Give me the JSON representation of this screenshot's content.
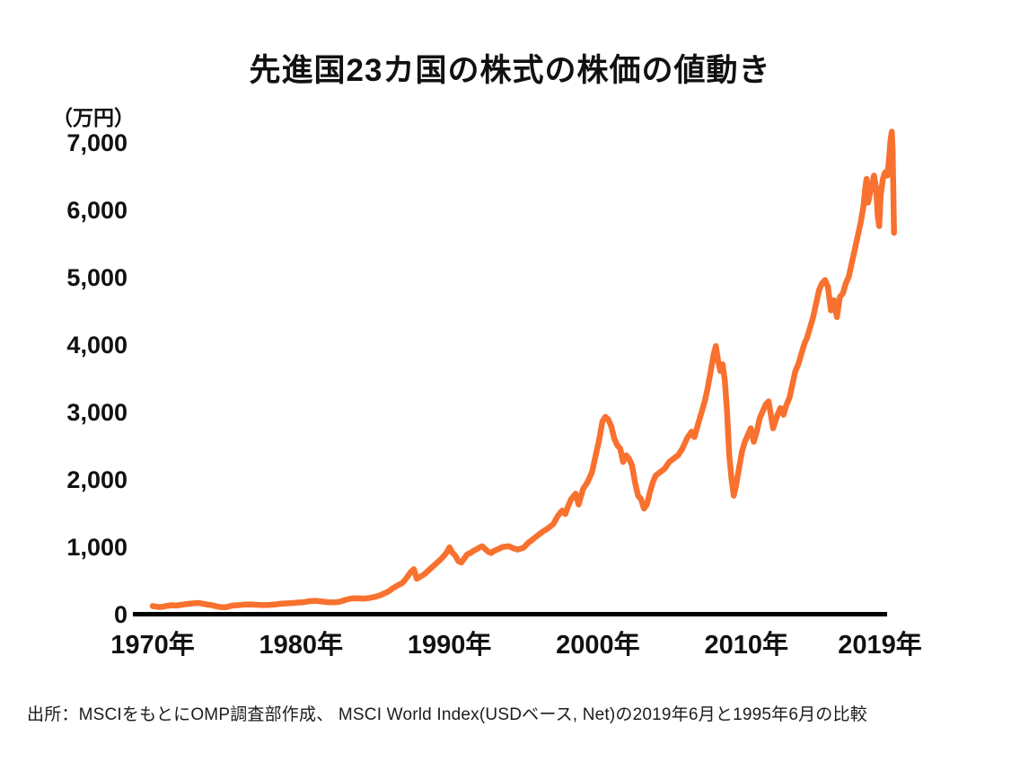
{
  "title": "先進国23カ国の株式の株価の値動き",
  "source_note": "出所：MSCIをもとにOMP調査部作成、 MSCI World Index(USDベース, Net)の2019年6月と1995年6月の比較",
  "chart_data": {
    "type": "line",
    "title": "先進国23カ国の株式の株価の値動き",
    "unit_label": "（万円）",
    "ylabel": "万円",
    "xlabel": "年",
    "ylim": [
      0,
      7000
    ],
    "grid": false,
    "legend": "none",
    "line_color": "#F8712F",
    "axis_color": "#000000",
    "text_color": "#111111",
    "y_ticks": [
      0,
      1000,
      2000,
      3000,
      4000,
      5000,
      6000,
      7000
    ],
    "y_tick_labels": [
      "0",
      "1,000",
      "2,000",
      "3,000",
      "4,000",
      "5,000",
      "6,000",
      "7,000"
    ],
    "x_ticks": [
      1970,
      1980,
      1990,
      2000,
      2010,
      2019
    ],
    "x_tick_labels": [
      "1970年",
      "1980年",
      "1990年",
      "2000年",
      "2010年",
      "2019年"
    ],
    "series": [
      {
        "name": "MSCI World Index (USDベース, Net)",
        "points": [
          [
            1970.0,
            115
          ],
          [
            1970.25,
            104
          ],
          [
            1970.5,
            98
          ],
          [
            1970.75,
            108
          ],
          [
            1971.0,
            118
          ],
          [
            1971.3,
            126
          ],
          [
            1971.6,
            121
          ],
          [
            1972.0,
            135
          ],
          [
            1972.4,
            146
          ],
          [
            1972.8,
            156
          ],
          [
            1973.1,
            160
          ],
          [
            1973.4,
            148
          ],
          [
            1973.7,
            136
          ],
          [
            1974.0,
            126
          ],
          [
            1974.3,
            110
          ],
          [
            1974.6,
            99
          ],
          [
            1974.9,
            96
          ],
          [
            1975.2,
            114
          ],
          [
            1975.5,
            124
          ],
          [
            1975.8,
            128
          ],
          [
            1976.2,
            136
          ],
          [
            1976.6,
            139
          ],
          [
            1977.0,
            133
          ],
          [
            1977.4,
            128
          ],
          [
            1977.8,
            131
          ],
          [
            1978.2,
            136
          ],
          [
            1978.6,
            148
          ],
          [
            1979.0,
            153
          ],
          [
            1979.4,
            159
          ],
          [
            1979.8,
            166
          ],
          [
            1980.2,
            172
          ],
          [
            1980.6,
            186
          ],
          [
            1981.0,
            192
          ],
          [
            1981.4,
            181
          ],
          [
            1981.8,
            172
          ],
          [
            1982.2,
            168
          ],
          [
            1982.6,
            177
          ],
          [
            1983.0,
            206
          ],
          [
            1983.4,
            226
          ],
          [
            1983.8,
            231
          ],
          [
            1984.2,
            224
          ],
          [
            1984.6,
            233
          ],
          [
            1985.0,
            252
          ],
          [
            1985.3,
            272
          ],
          [
            1985.6,
            302
          ],
          [
            1985.9,
            332
          ],
          [
            1986.2,
            382
          ],
          [
            1986.5,
            420
          ],
          [
            1986.8,
            452
          ],
          [
            1987.0,
            500
          ],
          [
            1987.2,
            560
          ],
          [
            1987.4,
            622
          ],
          [
            1987.6,
            662
          ],
          [
            1987.8,
            520
          ],
          [
            1988.0,
            545
          ],
          [
            1988.3,
            585
          ],
          [
            1988.6,
            645
          ],
          [
            1988.9,
            705
          ],
          [
            1989.2,
            765
          ],
          [
            1989.5,
            825
          ],
          [
            1989.8,
            905
          ],
          [
            1990.0,
            985
          ],
          [
            1990.2,
            905
          ],
          [
            1990.4,
            862
          ],
          [
            1990.6,
            782
          ],
          [
            1990.8,
            762
          ],
          [
            1991.0,
            822
          ],
          [
            1991.2,
            882
          ],
          [
            1991.4,
            902
          ],
          [
            1991.6,
            932
          ],
          [
            1991.8,
            952
          ],
          [
            1992.0,
            982
          ],
          [
            1992.2,
            1002
          ],
          [
            1992.4,
            962
          ],
          [
            1992.6,
            922
          ],
          [
            1992.8,
            902
          ],
          [
            1993.0,
            932
          ],
          [
            1993.3,
            962
          ],
          [
            1993.6,
            992
          ],
          [
            1994.0,
            1002
          ],
          [
            1994.3,
            972
          ],
          [
            1994.6,
            952
          ],
          [
            1995.0,
            982
          ],
          [
            1995.3,
            1052
          ],
          [
            1995.6,
            1102
          ],
          [
            1996.0,
            1172
          ],
          [
            1996.3,
            1222
          ],
          [
            1996.6,
            1262
          ],
          [
            1997.0,
            1332
          ],
          [
            1997.3,
            1452
          ],
          [
            1997.6,
            1532
          ],
          [
            1997.8,
            1482
          ],
          [
            1998.0,
            1602
          ],
          [
            1998.2,
            1702
          ],
          [
            1998.5,
            1782
          ],
          [
            1998.7,
            1622
          ],
          [
            1999.0,
            1852
          ],
          [
            1999.3,
            1952
          ],
          [
            1999.6,
            2102
          ],
          [
            1999.9,
            2402
          ],
          [
            2000.1,
            2602
          ],
          [
            2000.3,
            2852
          ],
          [
            2000.5,
            2922
          ],
          [
            2000.7,
            2882
          ],
          [
            2000.9,
            2782
          ],
          [
            2001.1,
            2602
          ],
          [
            2001.3,
            2502
          ],
          [
            2001.5,
            2452
          ],
          [
            2001.7,
            2252
          ],
          [
            2001.9,
            2352
          ],
          [
            2002.1,
            2302
          ],
          [
            2002.3,
            2202
          ],
          [
            2002.5,
            1952
          ],
          [
            2002.7,
            1752
          ],
          [
            2002.9,
            1702
          ],
          [
            2003.1,
            1562
          ],
          [
            2003.3,
            1622
          ],
          [
            2003.5,
            1802
          ],
          [
            2003.7,
            1952
          ],
          [
            2003.9,
            2052
          ],
          [
            2004.2,
            2102
          ],
          [
            2004.5,
            2152
          ],
          [
            2004.8,
            2252
          ],
          [
            2005.1,
            2302
          ],
          [
            2005.4,
            2352
          ],
          [
            2005.7,
            2452
          ],
          [
            2006.0,
            2602
          ],
          [
            2006.3,
            2702
          ],
          [
            2006.5,
            2622
          ],
          [
            2006.8,
            2852
          ],
          [
            2007.0,
            3002
          ],
          [
            2007.2,
            3152
          ],
          [
            2007.4,
            3352
          ],
          [
            2007.6,
            3602
          ],
          [
            2007.8,
            3852
          ],
          [
            2007.95,
            3972
          ],
          [
            2008.1,
            3752
          ],
          [
            2008.25,
            3602
          ],
          [
            2008.4,
            3702
          ],
          [
            2008.55,
            3452
          ],
          [
            2008.7,
            3002
          ],
          [
            2008.85,
            2352
          ],
          [
            2009.0,
            2002
          ],
          [
            2009.15,
            1752
          ],
          [
            2009.3,
            1902
          ],
          [
            2009.5,
            2152
          ],
          [
            2009.7,
            2402
          ],
          [
            2009.9,
            2552
          ],
          [
            2010.1,
            2652
          ],
          [
            2010.3,
            2752
          ],
          [
            2010.5,
            2552
          ],
          [
            2010.7,
            2702
          ],
          [
            2010.9,
            2902
          ],
          [
            2011.1,
            3002
          ],
          [
            2011.3,
            3102
          ],
          [
            2011.5,
            3152
          ],
          [
            2011.65,
            2952
          ],
          [
            2011.8,
            2752
          ],
          [
            2011.95,
            2852
          ],
          [
            2012.1,
            2952
          ],
          [
            2012.3,
            3052
          ],
          [
            2012.5,
            2952
          ],
          [
            2012.7,
            3102
          ],
          [
            2012.9,
            3202
          ],
          [
            2013.1,
            3402
          ],
          [
            2013.3,
            3602
          ],
          [
            2013.5,
            3702
          ],
          [
            2013.7,
            3852
          ],
          [
            2013.9,
            4002
          ],
          [
            2014.1,
            4102
          ],
          [
            2014.3,
            4252
          ],
          [
            2014.5,
            4402
          ],
          [
            2014.7,
            4602
          ],
          [
            2014.9,
            4802
          ],
          [
            2015.1,
            4902
          ],
          [
            2015.3,
            4952
          ],
          [
            2015.5,
            4852
          ],
          [
            2015.7,
            4502
          ],
          [
            2015.9,
            4652
          ],
          [
            2016.1,
            4402
          ],
          [
            2016.3,
            4702
          ],
          [
            2016.5,
            4752
          ],
          [
            2016.7,
            4902
          ],
          [
            2016.9,
            5002
          ],
          [
            2017.1,
            5202
          ],
          [
            2017.3,
            5402
          ],
          [
            2017.5,
            5602
          ],
          [
            2017.7,
            5802
          ],
          [
            2017.9,
            6052
          ],
          [
            2018.0,
            6302
          ],
          [
            2018.1,
            6452
          ],
          [
            2018.2,
            6102
          ],
          [
            2018.35,
            6252
          ],
          [
            2018.5,
            6402
          ],
          [
            2018.6,
            6502
          ],
          [
            2018.75,
            6302
          ],
          [
            2018.85,
            5902
          ],
          [
            2018.95,
            5752
          ],
          [
            2019.05,
            6202
          ],
          [
            2019.2,
            6452
          ],
          [
            2019.35,
            6552
          ],
          [
            2019.5,
            6502
          ],
          [
            2019.6,
            6702
          ],
          [
            2019.7,
            7002
          ],
          [
            2019.8,
            7152
          ],
          [
            2019.85,
            6902
          ],
          [
            2019.9,
            6302
          ],
          [
            2019.95,
            5652
          ]
        ]
      }
    ]
  }
}
